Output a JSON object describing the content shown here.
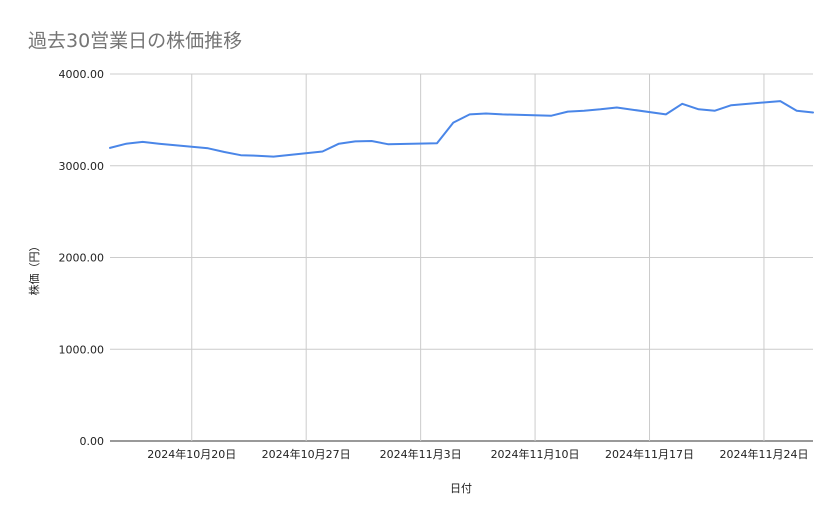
{
  "chart_data": {
    "type": "line",
    "title": "過去30営業日の株価推移",
    "xlabel": "日付",
    "ylabel": "株価（円）",
    "ylim": [
      0,
      4000
    ],
    "yticks": [
      "0.00",
      "1000.00",
      "2000.00",
      "3000.00",
      "4000.00"
    ],
    "yticks_values": [
      0,
      1000,
      2000,
      3000,
      4000
    ],
    "xlim": [
      "2024-10-15",
      "2024-11-27"
    ],
    "xticks": [
      {
        "date": "2024-10-20",
        "label": "2024年10月20日"
      },
      {
        "date": "2024-10-27",
        "label": "2024年10月27日"
      },
      {
        "date": "2024-11-03",
        "label": "2024年11月3日"
      },
      {
        "date": "2024-11-10",
        "label": "2024年11月10日"
      },
      {
        "date": "2024-11-17",
        "label": "2024年11月17日"
      },
      {
        "date": "2024-11-24",
        "label": "2024年11月24日"
      }
    ],
    "grid": true,
    "legend": "none",
    "series": [
      {
        "color": "#4a86e8",
        "x": [
          "2024-10-15",
          "2024-10-16",
          "2024-10-17",
          "2024-10-18",
          "2024-10-21",
          "2024-10-22",
          "2024-10-23",
          "2024-10-24",
          "2024-10-25",
          "2024-10-28",
          "2024-10-29",
          "2024-10-30",
          "2024-10-31",
          "2024-11-01",
          "2024-11-04",
          "2024-11-05",
          "2024-11-06",
          "2024-11-07",
          "2024-11-08",
          "2024-11-11",
          "2024-11-12",
          "2024-11-13",
          "2024-11-14",
          "2024-11-15",
          "2024-11-18",
          "2024-11-19",
          "2024-11-20",
          "2024-11-21",
          "2024-11-22",
          "2024-11-25",
          "2024-11-26",
          "2024-11-27"
        ],
        "values": [
          3195,
          3240,
          3260,
          3240,
          3190,
          3150,
          3115,
          3110,
          3100,
          3155,
          3240,
          3265,
          3270,
          3235,
          3245,
          3470,
          3560,
          3570,
          3560,
          3545,
          3590,
          3600,
          3615,
          3635,
          3560,
          3675,
          3615,
          3600,
          3660,
          3705,
          3600,
          3580
        ]
      }
    ]
  }
}
